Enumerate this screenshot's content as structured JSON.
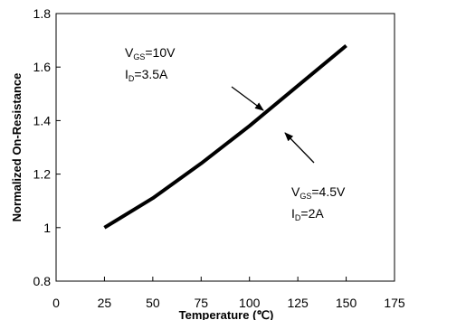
{
  "chart_data": {
    "type": "line",
    "title": "",
    "xlabel": "Temperature (℃)",
    "ylabel": "Normalized On-Resistance",
    "xlim": [
      0,
      175
    ],
    "ylim": [
      0.8,
      1.8
    ],
    "x_ticks": [
      0,
      25,
      50,
      75,
      100,
      125,
      150,
      175
    ],
    "y_ticks": [
      0.8,
      1,
      1.2,
      1.4,
      1.6,
      1.8
    ],
    "x_tick_labels": [
      "0",
      "25",
      "50",
      "75",
      "100",
      "125",
      "150",
      "175"
    ],
    "y_tick_labels": [
      "0.8",
      "1",
      "1.2",
      "1.4",
      "1.6",
      "1.8"
    ],
    "grid": false,
    "series": [
      {
        "x": [
          25,
          50,
          75,
          100,
          125,
          150
        ],
        "y": [
          1.0,
          1.11,
          1.24,
          1.38,
          1.53,
          1.68
        ],
        "color": "#000000"
      }
    ],
    "annotations": [
      {
        "v_main": "V",
        "v_sub": "GS",
        "v_rest": "=10V",
        "i_main": "I",
        "i_sub": "D",
        "i_rest": "=3.5A"
      },
      {
        "v_main": "V",
        "v_sub": "GS",
        "v_rest": "=4.5V",
        "i_main": "I",
        "i_sub": "D",
        "i_rest": "=2A"
      }
    ]
  }
}
